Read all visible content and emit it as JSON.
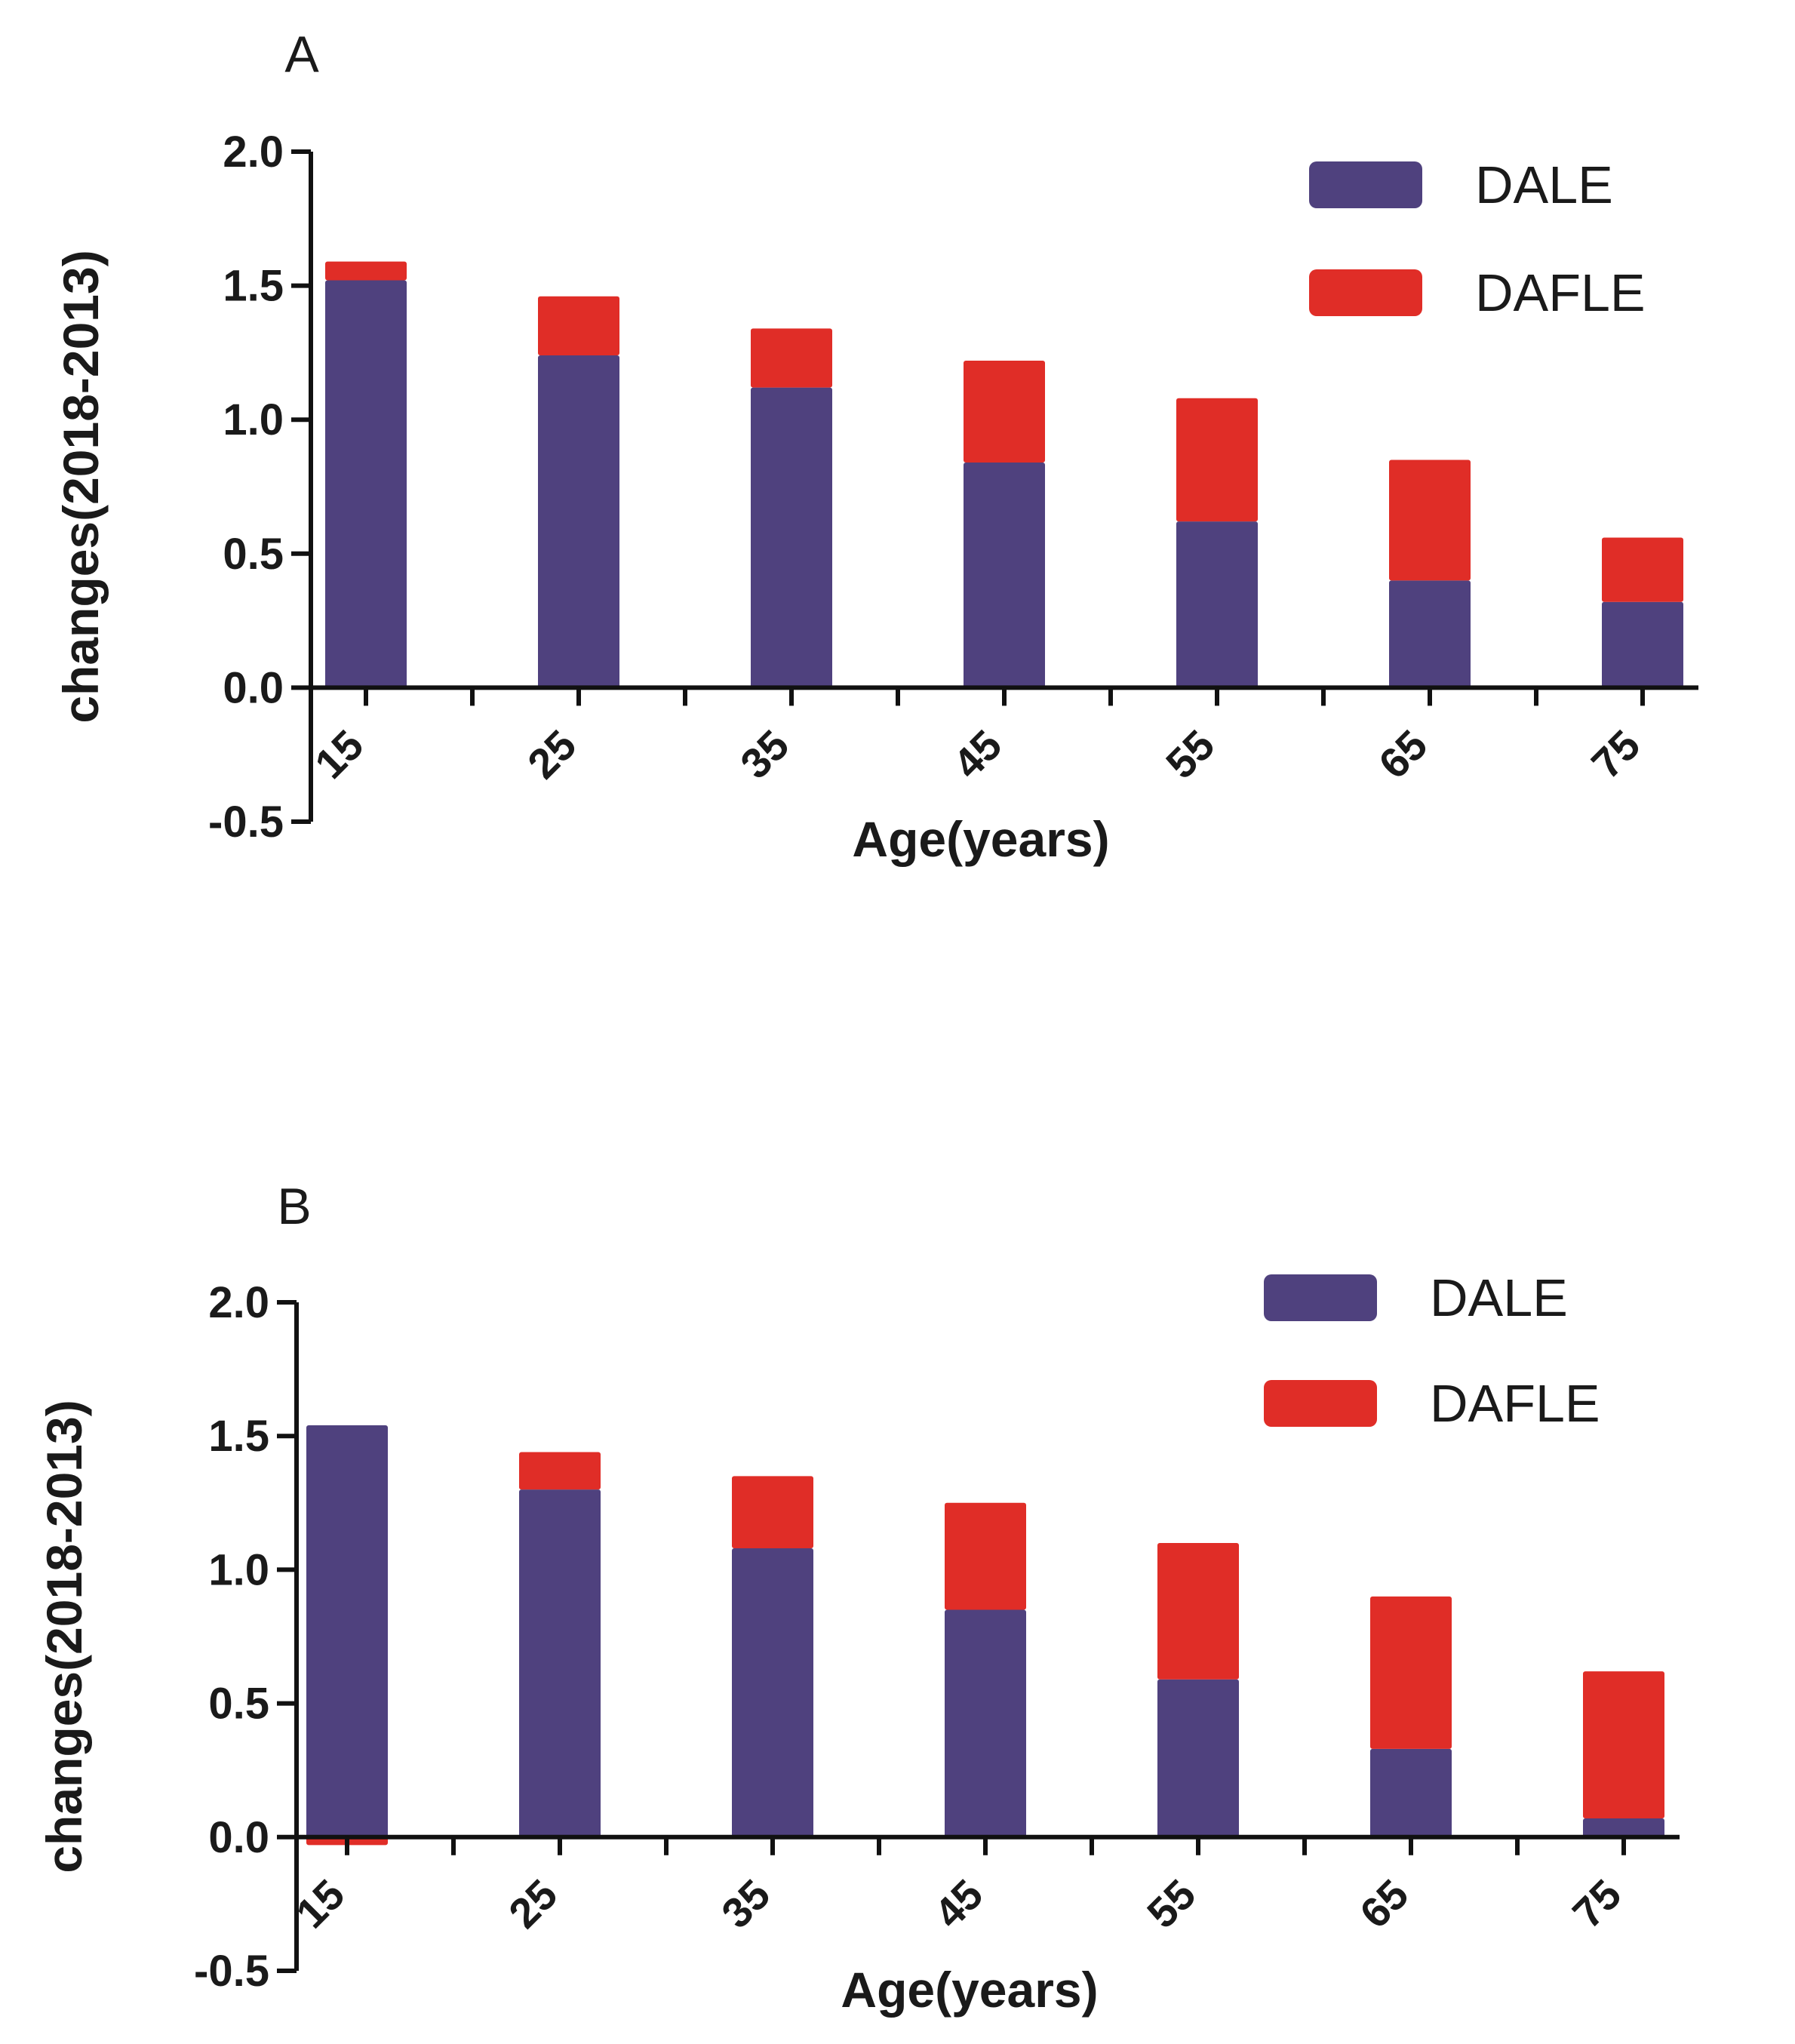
{
  "chart_data": [
    {
      "type": "bar",
      "stacked": true,
      "panel_label": "A",
      "categories": [
        "15",
        "25",
        "35",
        "45",
        "55",
        "65",
        "75"
      ],
      "series": [
        {
          "name": "DALE",
          "color": "#4f417e",
          "values": [
            1.52,
            1.24,
            1.12,
            0.84,
            0.62,
            0.4,
            0.32
          ]
        },
        {
          "name": "DAFLE",
          "color": "#e02d27",
          "values": [
            0.07,
            0.22,
            0.22,
            0.38,
            0.46,
            0.45,
            0.24
          ]
        }
      ],
      "xlabel": "Age(years)",
      "ylabel": "changes(2018-2013)",
      "ylim": [
        -0.5,
        2.0
      ],
      "yticks": [
        "-0.5",
        "0.0",
        "0.5",
        "1.0",
        "1.5",
        "2.0"
      ],
      "legend": "top-right",
      "grid": false
    },
    {
      "type": "bar",
      "stacked": true,
      "panel_label": "B",
      "categories": [
        "15",
        "25",
        "35",
        "45",
        "55",
        "65",
        "75"
      ],
      "series": [
        {
          "name": "DALE",
          "color": "#4f417e",
          "values": [
            1.54,
            1.3,
            1.08,
            0.85,
            0.59,
            0.33,
            0.07
          ]
        },
        {
          "name": "DAFLE",
          "color": "#e02d27",
          "values": [
            -0.03,
            0.14,
            0.27,
            0.4,
            0.51,
            0.57,
            0.55
          ]
        }
      ],
      "xlabel": "Age(years)",
      "ylabel": "changes(2018-2013)",
      "ylim": [
        -0.5,
        2.0
      ],
      "yticks": [
        "-0.5",
        "0.0",
        "0.5",
        "1.0",
        "1.5",
        "2.0"
      ],
      "legend": "top-right",
      "grid": false
    }
  ]
}
